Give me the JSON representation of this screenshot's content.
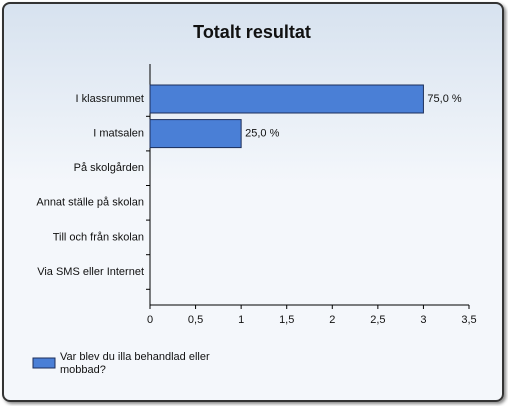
{
  "chart_data": {
    "type": "bar",
    "orientation": "horizontal",
    "title": "Totalt resultat",
    "categories": [
      "I klassrummet",
      "I matsalen",
      "På skolgården",
      "Annat ställe på skolan",
      "Till och från skolan",
      "Via SMS eller Internet"
    ],
    "series": [
      {
        "name": "Var blev du illa behandlad eller mobbad?",
        "color": "#4a7fd6",
        "values": [
          3,
          1,
          0,
          0,
          0,
          0
        ],
        "value_labels": [
          "75,0 %",
          "25,0 %",
          null,
          null,
          null,
          null
        ]
      }
    ],
    "xlim": [
      0,
      3.5
    ],
    "xticks": [
      0,
      {
        "value": 0.5,
        "label": "0,5"
      },
      1,
      {
        "value": 1.5,
        "label": "1,5"
      },
      2,
      {
        "value": 2.5,
        "label": "2,5"
      },
      3,
      {
        "value": 3.5,
        "label": "3,5"
      }
    ],
    "legend": "bottom-left"
  }
}
